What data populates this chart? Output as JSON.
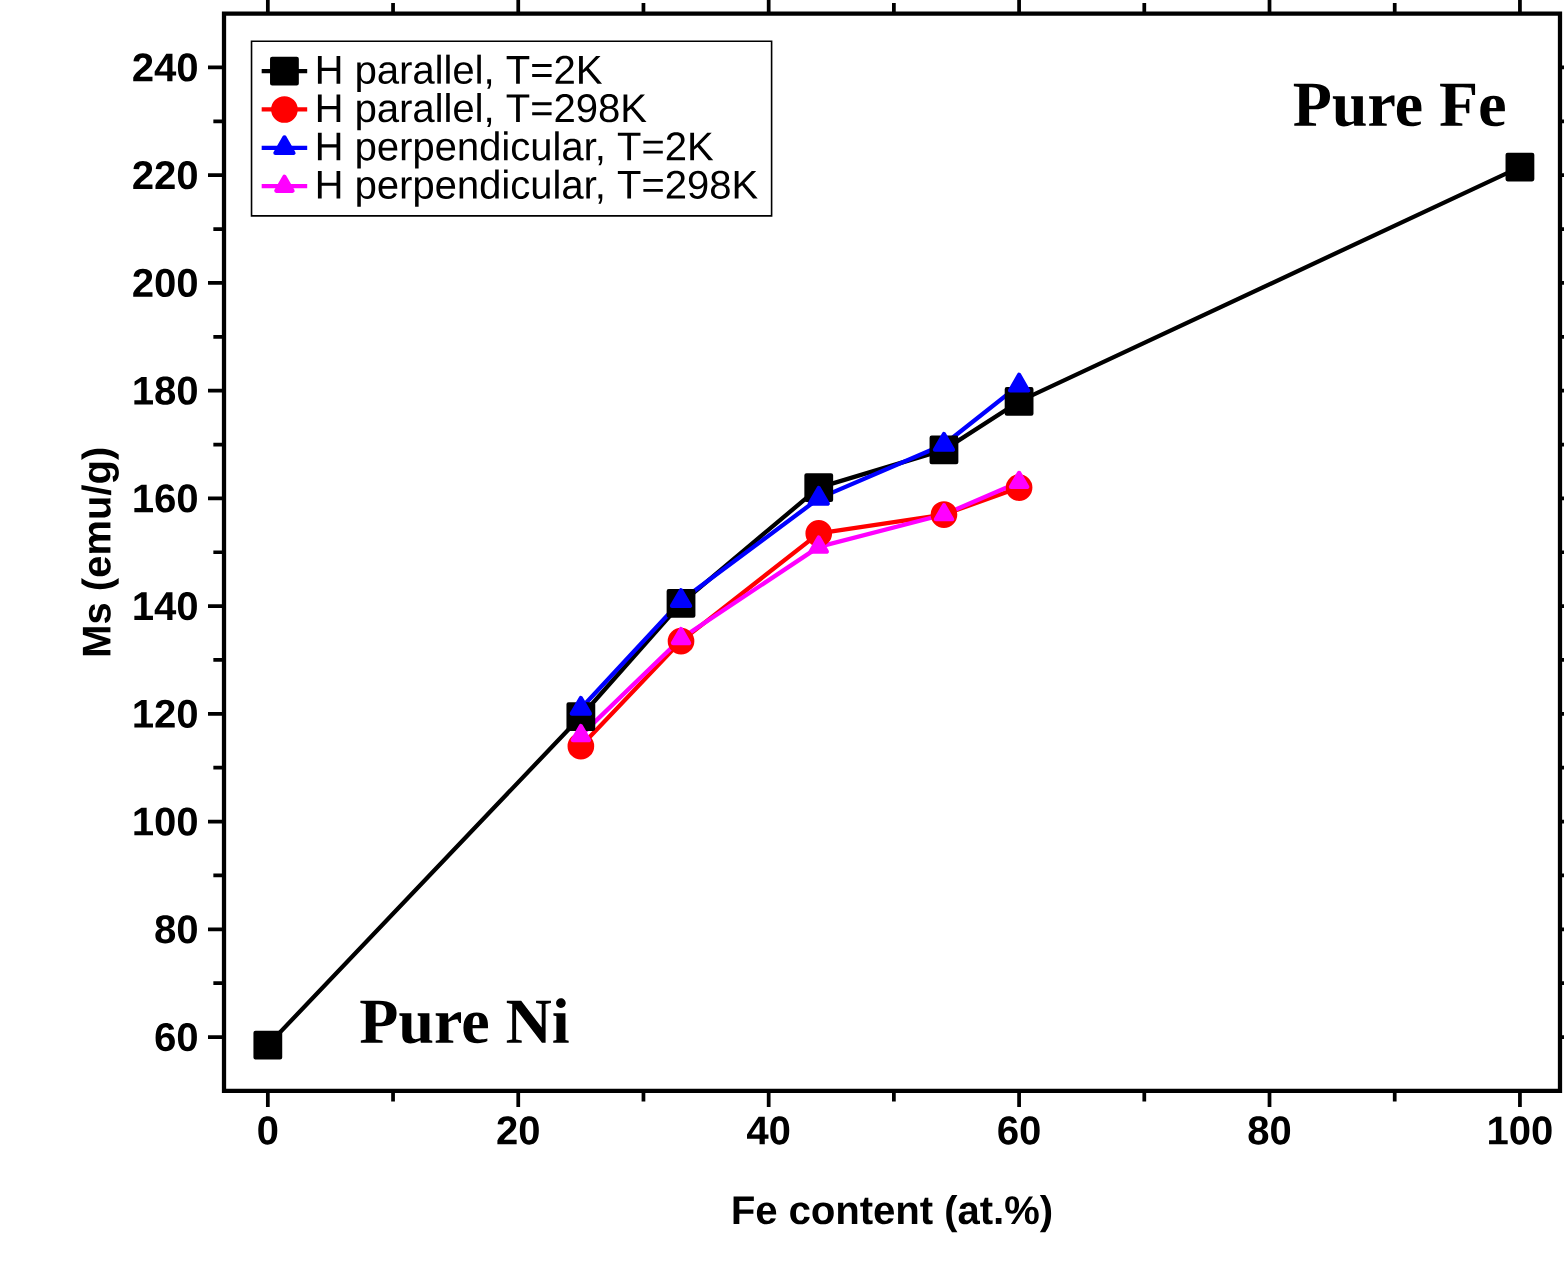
{
  "chart_data": {
    "type": "line",
    "xlabel": "Fe content (at.%)",
    "ylabel": "Ms (emu/g)",
    "xlim": [
      -3.5,
      103.2
    ],
    "ylim": [
      50,
      250
    ],
    "xticks": [
      0,
      20,
      40,
      60,
      80,
      100
    ],
    "yticks": [
      60,
      80,
      100,
      120,
      140,
      160,
      180,
      200,
      220,
      240
    ],
    "legend": "top left",
    "grid": false,
    "line_style": "solid",
    "annotations": [
      "Pure Fe",
      "Pure Ni"
    ],
    "series": [
      {
        "name": "H parallel, T=2K",
        "color": "#000000",
        "marker": "square",
        "x": [
          0,
          25,
          33,
          44,
          54,
          60,
          100
        ],
        "values": [
          58.5,
          119.5,
          140.5,
          162,
          169,
          178,
          221.5
        ]
      },
      {
        "name": "H parallel, T=298K",
        "color": "#ff0000",
        "marker": "circle",
        "x": [
          25,
          33,
          44,
          54,
          60
        ],
        "values": [
          114,
          133.5,
          153.5,
          157,
          162
        ]
      },
      {
        "name": "H perpendicular, T=2K",
        "color": "#0000ff",
        "marker": "triangle",
        "x": [
          25,
          33,
          44,
          54,
          60
        ],
        "values": [
          121,
          141,
          160,
          170,
          181
        ]
      },
      {
        "name": "H perpendicular, T=298K",
        "color": "#ff00ff",
        "marker": "triangle down",
        "x": [
          25,
          33,
          44,
          54,
          60
        ],
        "values": [
          116,
          134,
          151,
          157,
          163
        ]
      }
    ]
  }
}
